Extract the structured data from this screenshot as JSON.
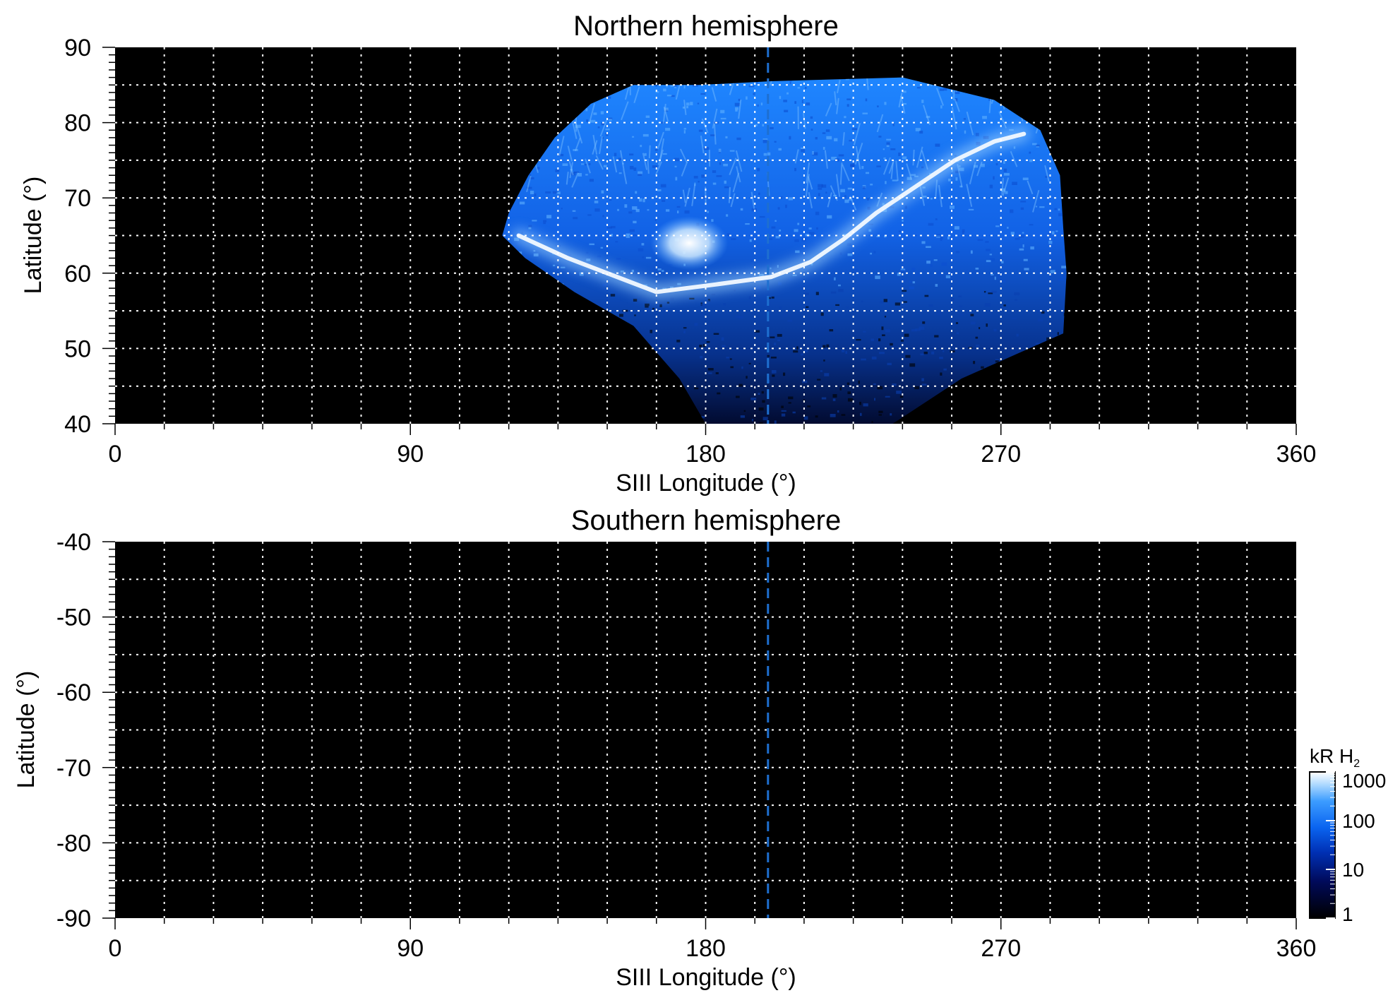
{
  "chart_data": [
    {
      "type": "heatmap",
      "title": "Northern hemisphere",
      "xlabel": "SIII Longitude (°)",
      "ylabel": "Latitude (°)",
      "xlim": [
        0,
        360
      ],
      "ylim": [
        40,
        90
      ],
      "x_ticks": [
        "0",
        "90",
        "180",
        "270",
        "360"
      ],
      "y_ticks": [
        "40",
        "50",
        "60",
        "70",
        "80",
        "90"
      ],
      "grid": true,
      "background": "#000000",
      "reference_line": {
        "longitude": 199,
        "style": "dashed",
        "color": "#1e6fd0"
      },
      "emission_coverage": {
        "upper_edge": [
          [
            118,
            65
          ],
          [
            120,
            68
          ],
          [
            126,
            73
          ],
          [
            134,
            78
          ],
          [
            145,
            82.5
          ],
          [
            158,
            85
          ],
          [
            178,
            85
          ],
          [
            200,
            85.5
          ],
          [
            240,
            86
          ],
          [
            268,
            83
          ],
          [
            282,
            79
          ],
          [
            288,
            73
          ],
          [
            289,
            66
          ],
          [
            290,
            60
          ],
          [
            289,
            52
          ]
        ],
        "lower_edge": [
          [
            118,
            65
          ],
          [
            125,
            62
          ],
          [
            140,
            57.5
          ],
          [
            158,
            53
          ],
          [
            172,
            46
          ],
          [
            180,
            40
          ],
          [
            237,
            40
          ],
          [
            258,
            46
          ],
          [
            276,
            49.5
          ],
          [
            289,
            52
          ]
        ]
      },
      "main_oval": [
        [
          123,
          65
        ],
        [
          138,
          62
        ],
        [
          150,
          60
        ],
        [
          165,
          57.5
        ],
        [
          183,
          58.5
        ],
        [
          200,
          59.5
        ],
        [
          212,
          61.5
        ],
        [
          222,
          64.5
        ],
        [
          232,
          68
        ],
        [
          244,
          71.5
        ],
        [
          256,
          75
        ],
        [
          268,
          77.5
        ],
        [
          277,
          78.5
        ]
      ],
      "bright_spot": {
        "longitude": 175,
        "latitude": 64
      }
    },
    {
      "type": "heatmap",
      "title": "Southern hemisphere",
      "xlabel": "SIII Longitude (°)",
      "ylabel": "Latitude (°)",
      "xlim": [
        0,
        360
      ],
      "ylim": [
        -90,
        -40
      ],
      "x_ticks": [
        "0",
        "90",
        "180",
        "270",
        "360"
      ],
      "y_ticks": [
        "-40",
        "-50",
        "-60",
        "-70",
        "-80",
        "-90"
      ],
      "grid": true,
      "background": "#000000",
      "reference_line": {
        "longitude": 199,
        "style": "dashed",
        "color": "#1e6fd0"
      }
    }
  ],
  "colorbar": {
    "label_main": "kR H",
    "label_sub": "2",
    "scale": "log",
    "ticks": [
      "1",
      "10",
      "100",
      "1000"
    ],
    "colors": [
      "#000000",
      "#000a5a",
      "#0030b4",
      "#0a64f0",
      "#3c9cff",
      "#b4dcff",
      "#ffffff"
    ]
  }
}
